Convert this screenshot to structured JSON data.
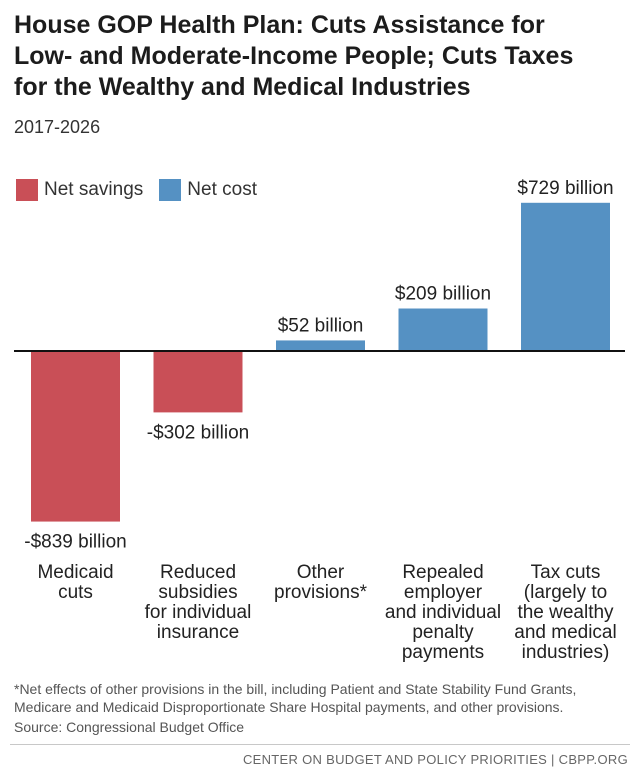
{
  "title": "House GOP Health Plan: Cuts Assistance for\nLow- and Moderate-Income People; Cuts Taxes\nfor the Wealthy and Medical Industries",
  "subtitle": "2017-2026",
  "legend": {
    "savings": {
      "label": "Net savings",
      "color": "#c94f57"
    },
    "cost": {
      "label": "Net cost",
      "color": "#5591c3"
    }
  },
  "chart_data": {
    "type": "bar",
    "title": "House GOP Health Plan: Cuts Assistance for Low- and Moderate-Income People; Cuts Taxes for the Wealthy and Medical Industries",
    "subtitle": "2017-2026",
    "unit": "billions of dollars",
    "categories": [
      "Medicaid cuts",
      "Reduced subsidies for individual insurance",
      "Other provisions*",
      "Repealed employer and individual penalty payments",
      "Tax cuts (largely to the wealthy and medical industries)"
    ],
    "category_lines": [
      [
        "Medicaid",
        "cuts"
      ],
      [
        "Reduced",
        "subsidies",
        "for individual",
        "insurance"
      ],
      [
        "Other",
        "provisions*"
      ],
      [
        "Repealed",
        "employer",
        "and individual",
        "penalty",
        "payments"
      ],
      [
        "Tax cuts",
        "(largely to",
        "the wealthy",
        "and medical",
        "industries)"
      ]
    ],
    "values": [
      -839,
      -302,
      52,
      209,
      729
    ],
    "value_labels": [
      "-$839 billion",
      "-$302 billion",
      "$52 billion",
      "$209 billion",
      "$729 billion"
    ],
    "series": [
      {
        "name": "Net savings",
        "color": "#c94f57"
      },
      {
        "name": "Net cost",
        "color": "#5591c3"
      }
    ],
    "ylim": [
      -839,
      729
    ],
    "grid": false,
    "legend_position": "top-left"
  },
  "footnote": "*Net effects of other provisions in the bill, including Patient and State Stability Fund Grants,\nMedicare and Medicaid Disproportionate Share Hospital payments, and other provisions.",
  "source": "Source: Congressional Budget Office",
  "organization": "CENTER ON BUDGET AND POLICY PRIORITIES | CBPP.ORG"
}
